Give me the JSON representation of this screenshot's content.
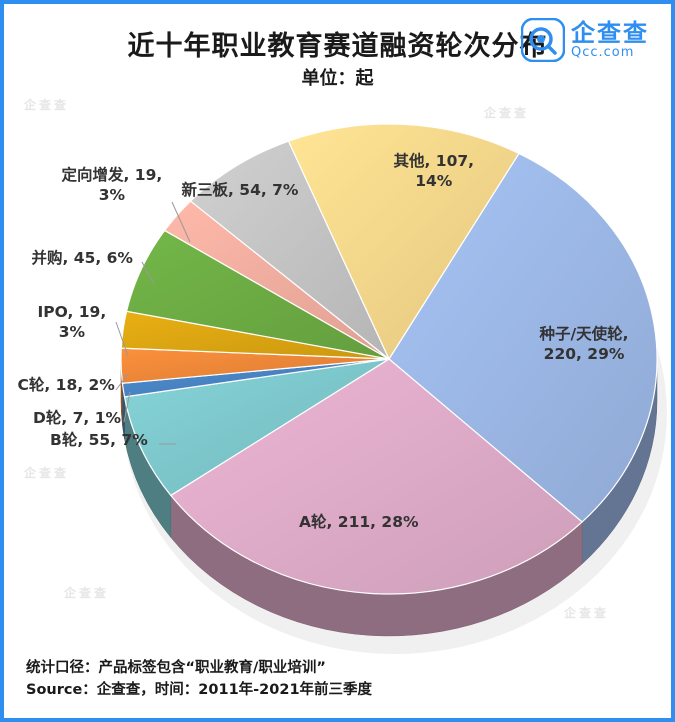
{
  "title": "近十年职业教育赛道融资轮次分布",
  "unit": "单位：起",
  "logo": {
    "cn": "企查查",
    "en": "Qcc.com",
    "color": "#2f8ef0",
    "icon": "qcc-logo-icon"
  },
  "footer": {
    "line1": "统计口径：产品标签包含“职业教育/职业培训”",
    "line2": "Source：企查查，时间：2011年-2021年前三季度"
  },
  "watermark": "企查查",
  "chart_data": {
    "type": "pie",
    "style": "3d",
    "title": "近十年职业教育赛道融资轮次分布",
    "unit": "单位：起",
    "slices": [
      {
        "name": "种子/天使轮",
        "value": 220,
        "percent": "29%",
        "color": "#a0bcec",
        "label_lines": [
          "种子/天使轮,",
          "220, 29%"
        ]
      },
      {
        "name": "A轮",
        "value": 211,
        "percent": "28%",
        "color": "#e4afcd",
        "label_lines": [
          "A轮, 211, 28%"
        ]
      },
      {
        "name": "B轮",
        "value": 55,
        "percent": "7%",
        "color": "#80ccd1",
        "label_lines": [
          "B轮, 55, 7%"
        ]
      },
      {
        "name": "D轮",
        "value": 7,
        "percent": "1%",
        "color": "#4a86c8",
        "label_lines": [
          "D轮, 7, 1%"
        ]
      },
      {
        "name": "C轮",
        "value": 18,
        "percent": "2%",
        "color": "#f28a3a",
        "label_lines": [
          "C轮, 18, 2%"
        ]
      },
      {
        "name": "IPO",
        "value": 19,
        "percent": "3%",
        "color": "#e0a912",
        "label_lines": [
          "IPO, 19,",
          "3%"
        ]
      },
      {
        "name": "并购",
        "value": 45,
        "percent": "6%",
        "color": "#6fb045",
        "label_lines": [
          "并购, 45, 6%"
        ]
      },
      {
        "name": "定向增发",
        "value": 19,
        "percent": "3%",
        "color": "#f7b2a3",
        "label_lines": [
          "定向增发, 19,",
          "3%"
        ]
      },
      {
        "name": "新三板",
        "value": 54,
        "percent": "7%",
        "color": "#c9c9c9",
        "label_lines": [
          "新三板, 54, 7%"
        ]
      },
      {
        "name": "其他",
        "value": 107,
        "percent": "14%",
        "color": "#fddc8e",
        "label_lines": [
          "其他, 107,",
          "14%"
        ]
      }
    ]
  }
}
